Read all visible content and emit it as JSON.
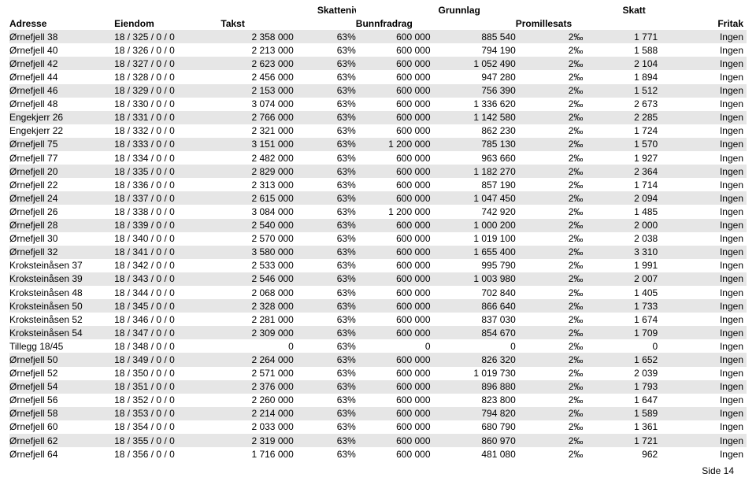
{
  "header1": {
    "skatteniva": "Skattenivå",
    "grunnlag": "Grunnlag",
    "skatt": "Skatt"
  },
  "header2": {
    "adresse": "Adresse",
    "eiendom": "Eiendom",
    "takst": "Takst",
    "bunnfradrag": "Bunnfradrag",
    "promillesats": "Promillesats",
    "fritak": "Fritak"
  },
  "footer": "Side 14",
  "rows": [
    {
      "adresse": "Ørnefjell 38",
      "eiendom": "18 / 325 / 0 / 0",
      "takst": "2 358 000",
      "skatten": "63%",
      "bunn": "600 000",
      "grunnlag": "885 540",
      "prom": "2‰",
      "skatt": "1 771",
      "fritak": "Ingen"
    },
    {
      "adresse": "Ørnefjell 40",
      "eiendom": "18 / 326 / 0 / 0",
      "takst": "2 213 000",
      "skatten": "63%",
      "bunn": "600 000",
      "grunnlag": "794 190",
      "prom": "2‰",
      "skatt": "1 588",
      "fritak": "Ingen"
    },
    {
      "adresse": "Ørnefjell 42",
      "eiendom": "18 / 327 / 0 / 0",
      "takst": "2 623 000",
      "skatten": "63%",
      "bunn": "600 000",
      "grunnlag": "1 052 490",
      "prom": "2‰",
      "skatt": "2 104",
      "fritak": "Ingen"
    },
    {
      "adresse": "Ørnefjell 44",
      "eiendom": "18 / 328 / 0 / 0",
      "takst": "2 456 000",
      "skatten": "63%",
      "bunn": "600 000",
      "grunnlag": "947 280",
      "prom": "2‰",
      "skatt": "1 894",
      "fritak": "Ingen"
    },
    {
      "adresse": "Ørnefjell 46",
      "eiendom": "18 / 329 / 0 / 0",
      "takst": "2 153 000",
      "skatten": "63%",
      "bunn": "600 000",
      "grunnlag": "756 390",
      "prom": "2‰",
      "skatt": "1 512",
      "fritak": "Ingen"
    },
    {
      "adresse": "Ørnefjell 48",
      "eiendom": "18 / 330 / 0 / 0",
      "takst": "3 074 000",
      "skatten": "63%",
      "bunn": "600 000",
      "grunnlag": "1 336 620",
      "prom": "2‰",
      "skatt": "2 673",
      "fritak": "Ingen"
    },
    {
      "adresse": "Engekjerr 26",
      "eiendom": "18 / 331 / 0 / 0",
      "takst": "2 766 000",
      "skatten": "63%",
      "bunn": "600 000",
      "grunnlag": "1 142 580",
      "prom": "2‰",
      "skatt": "2 285",
      "fritak": "Ingen"
    },
    {
      "adresse": "Engekjerr 22",
      "eiendom": "18 / 332 / 0 / 0",
      "takst": "2 321 000",
      "skatten": "63%",
      "bunn": "600 000",
      "grunnlag": "862 230",
      "prom": "2‰",
      "skatt": "1 724",
      "fritak": "Ingen"
    },
    {
      "adresse": "Ørnefjell 75",
      "eiendom": "18 / 333 / 0 / 0",
      "takst": "3 151 000",
      "skatten": "63%",
      "bunn": "1 200 000",
      "grunnlag": "785 130",
      "prom": "2‰",
      "skatt": "1 570",
      "fritak": "Ingen"
    },
    {
      "adresse": "Ørnefjell 77",
      "eiendom": "18 / 334 / 0 / 0",
      "takst": "2 482 000",
      "skatten": "63%",
      "bunn": "600 000",
      "grunnlag": "963 660",
      "prom": "2‰",
      "skatt": "1 927",
      "fritak": "Ingen"
    },
    {
      "adresse": "Ørnefjell 20",
      "eiendom": "18 / 335 / 0 / 0",
      "takst": "2 829 000",
      "skatten": "63%",
      "bunn": "600 000",
      "grunnlag": "1 182 270",
      "prom": "2‰",
      "skatt": "2 364",
      "fritak": "Ingen"
    },
    {
      "adresse": "Ørnefjell 22",
      "eiendom": "18 / 336 / 0 / 0",
      "takst": "2 313 000",
      "skatten": "63%",
      "bunn": "600 000",
      "grunnlag": "857 190",
      "prom": "2‰",
      "skatt": "1 714",
      "fritak": "Ingen"
    },
    {
      "adresse": "Ørnefjell 24",
      "eiendom": "18 / 337 / 0 / 0",
      "takst": "2 615 000",
      "skatten": "63%",
      "bunn": "600 000",
      "grunnlag": "1 047 450",
      "prom": "2‰",
      "skatt": "2 094",
      "fritak": "Ingen"
    },
    {
      "adresse": "Ørnefjell 26",
      "eiendom": "18 / 338 / 0 / 0",
      "takst": "3 084 000",
      "skatten": "63%",
      "bunn": "1 200 000",
      "grunnlag": "742 920",
      "prom": "2‰",
      "skatt": "1 485",
      "fritak": "Ingen"
    },
    {
      "adresse": "Ørnefjell 28",
      "eiendom": "18 / 339 / 0 / 0",
      "takst": "2 540 000",
      "skatten": "63%",
      "bunn": "600 000",
      "grunnlag": "1 000 200",
      "prom": "2‰",
      "skatt": "2 000",
      "fritak": "Ingen"
    },
    {
      "adresse": "Ørnefjell 30",
      "eiendom": "18 / 340 / 0 / 0",
      "takst": "2 570 000",
      "skatten": "63%",
      "bunn": "600 000",
      "grunnlag": "1 019 100",
      "prom": "2‰",
      "skatt": "2 038",
      "fritak": "Ingen"
    },
    {
      "adresse": "Ørnefjell 32",
      "eiendom": "18 / 341 / 0 / 0",
      "takst": "3 580 000",
      "skatten": "63%",
      "bunn": "600 000",
      "grunnlag": "1 655 400",
      "prom": "2‰",
      "skatt": "3 310",
      "fritak": "Ingen"
    },
    {
      "adresse": "Kroksteinåsen 37",
      "eiendom": "18 / 342 / 0 / 0",
      "takst": "2 533 000",
      "skatten": "63%",
      "bunn": "600 000",
      "grunnlag": "995 790",
      "prom": "2‰",
      "skatt": "1 991",
      "fritak": "Ingen"
    },
    {
      "adresse": "Kroksteinåsen 39",
      "eiendom": "18 / 343 / 0 / 0",
      "takst": "2 546 000",
      "skatten": "63%",
      "bunn": "600 000",
      "grunnlag": "1 003 980",
      "prom": "2‰",
      "skatt": "2 007",
      "fritak": "Ingen"
    },
    {
      "adresse": "Kroksteinåsen 48",
      "eiendom": "18 / 344 / 0 / 0",
      "takst": "2 068 000",
      "skatten": "63%",
      "bunn": "600 000",
      "grunnlag": "702 840",
      "prom": "2‰",
      "skatt": "1 405",
      "fritak": "Ingen"
    },
    {
      "adresse": "Kroksteinåsen 50",
      "eiendom": "18 / 345 / 0 / 0",
      "takst": "2 328 000",
      "skatten": "63%",
      "bunn": "600 000",
      "grunnlag": "866 640",
      "prom": "2‰",
      "skatt": "1 733",
      "fritak": "Ingen"
    },
    {
      "adresse": "Kroksteinåsen 52",
      "eiendom": "18 / 346 / 0 / 0",
      "takst": "2 281 000",
      "skatten": "63%",
      "bunn": "600 000",
      "grunnlag": "837 030",
      "prom": "2‰",
      "skatt": "1 674",
      "fritak": "Ingen"
    },
    {
      "adresse": "Kroksteinåsen 54",
      "eiendom": "18 / 347 / 0 / 0",
      "takst": "2 309 000",
      "skatten": "63%",
      "bunn": "600 000",
      "grunnlag": "854 670",
      "prom": "2‰",
      "skatt": "1 709",
      "fritak": "Ingen"
    },
    {
      "adresse": "Tillegg 18/45",
      "eiendom": "18 / 348 / 0 / 0",
      "takst": "0",
      "skatten": "63%",
      "bunn": "0",
      "grunnlag": "0",
      "prom": "2‰",
      "skatt": "0",
      "fritak": "Ingen"
    },
    {
      "adresse": "Ørnefjell 50",
      "eiendom": "18 / 349 / 0 / 0",
      "takst": "2 264 000",
      "skatten": "63%",
      "bunn": "600 000",
      "grunnlag": "826 320",
      "prom": "2‰",
      "skatt": "1 652",
      "fritak": "Ingen"
    },
    {
      "adresse": "Ørnefjell 52",
      "eiendom": "18 / 350 / 0 / 0",
      "takst": "2 571 000",
      "skatten": "63%",
      "bunn": "600 000",
      "grunnlag": "1 019 730",
      "prom": "2‰",
      "skatt": "2 039",
      "fritak": "Ingen"
    },
    {
      "adresse": "Ørnefjell 54",
      "eiendom": "18 / 351 / 0 / 0",
      "takst": "2 376 000",
      "skatten": "63%",
      "bunn": "600 000",
      "grunnlag": "896 880",
      "prom": "2‰",
      "skatt": "1 793",
      "fritak": "Ingen"
    },
    {
      "adresse": "Ørnefjell 56",
      "eiendom": "18 / 352 / 0 / 0",
      "takst": "2 260 000",
      "skatten": "63%",
      "bunn": "600 000",
      "grunnlag": "823 800",
      "prom": "2‰",
      "skatt": "1 647",
      "fritak": "Ingen"
    },
    {
      "adresse": "Ørnefjell 58",
      "eiendom": "18 / 353 / 0 / 0",
      "takst": "2 214 000",
      "skatten": "63%",
      "bunn": "600 000",
      "grunnlag": "794 820",
      "prom": "2‰",
      "skatt": "1 589",
      "fritak": "Ingen"
    },
    {
      "adresse": "Ørnefjell 60",
      "eiendom": "18 / 354 / 0 / 0",
      "takst": "2 033 000",
      "skatten": "63%",
      "bunn": "600 000",
      "grunnlag": "680 790",
      "prom": "2‰",
      "skatt": "1 361",
      "fritak": "Ingen"
    },
    {
      "adresse": "Ørnefjell 62",
      "eiendom": "18 / 355 / 0 / 0",
      "takst": "2 319 000",
      "skatten": "63%",
      "bunn": "600 000",
      "grunnlag": "860 970",
      "prom": "2‰",
      "skatt": "1 721",
      "fritak": "Ingen"
    },
    {
      "adresse": "Ørnefjell 64",
      "eiendom": "18 / 356 / 0 / 0",
      "takst": "1 716 000",
      "skatten": "63%",
      "bunn": "600 000",
      "grunnlag": "481 080",
      "prom": "2‰",
      "skatt": "962",
      "fritak": "Ingen"
    }
  ]
}
